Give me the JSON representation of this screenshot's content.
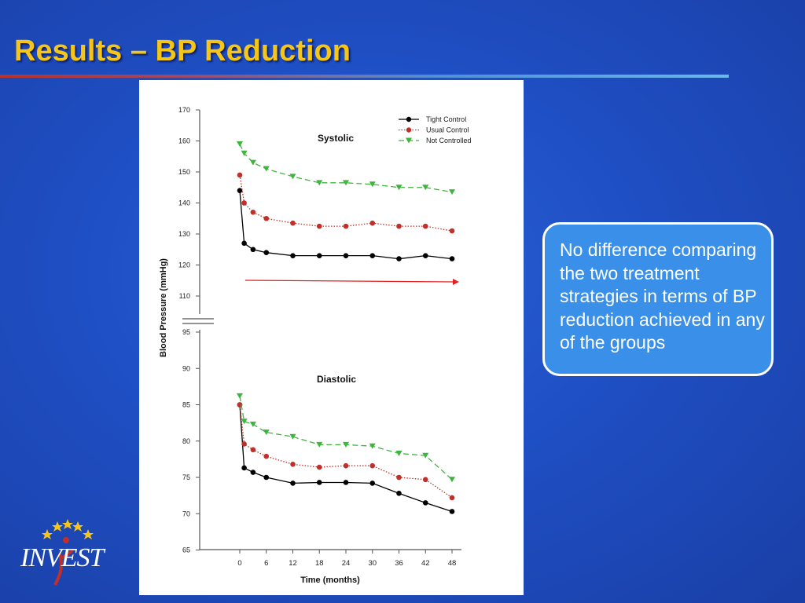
{
  "slide": {
    "title": "Results – BP Reduction",
    "callout": "No difference comparing the two treatment strategies in terms of BP reduction achieved in any of the groups",
    "logo_text": "INVEST"
  },
  "colors": {
    "title": "#f5c518",
    "callout_bg": "#3a8fe8",
    "tight_control": "#000000",
    "usual_control": "#c0302a",
    "not_controlled": "#3fb43f",
    "arrow": "#e02020"
  },
  "chart_data": [
    {
      "type": "line",
      "title": "Systolic",
      "ylabel": "Blood Pressure (mmHg)",
      "ylim": [
        105,
        170
      ],
      "yticks": [
        "110",
        "120",
        "130",
        "140",
        "150",
        "160",
        "170"
      ],
      "x": [
        0,
        1,
        3,
        6,
        12,
        18,
        24,
        30,
        36,
        42,
        48
      ],
      "legend_position": "top-right",
      "series": [
        {
          "name": "Tight Control",
          "values": [
            144,
            127,
            125,
            124,
            123,
            123,
            123,
            123,
            122,
            123,
            122
          ]
        },
        {
          "name": "Usual Control",
          "values": [
            149,
            140,
            137,
            135,
            133.5,
            132.5,
            132.5,
            133.5,
            132.5,
            132.5,
            131
          ]
        },
        {
          "name": "Not Controlled",
          "values": [
            159,
            156,
            153,
            151,
            148.5,
            146.5,
            146.5,
            146,
            145,
            145,
            143.5
          ]
        }
      ]
    },
    {
      "type": "line",
      "title": "Diastolic",
      "xlabel": "Time (months)",
      "ylim": [
        65,
        95
      ],
      "yticks": [
        "65",
        "70",
        "75",
        "80",
        "85",
        "90",
        "95"
      ],
      "x": [
        0,
        1,
        3,
        6,
        12,
        18,
        24,
        30,
        36,
        42,
        48
      ],
      "xtick_labels": [
        "0",
        "6",
        "12",
        "18",
        "24",
        "30",
        "36",
        "42",
        "48"
      ],
      "series": [
        {
          "name": "Tight Control",
          "values": [
            85,
            76.3,
            75.7,
            75,
            74.2,
            74.3,
            74.3,
            74.2,
            72.8,
            71.5,
            70.3
          ]
        },
        {
          "name": "Usual Control",
          "values": [
            85,
            79.6,
            78.8,
            77.9,
            76.8,
            76.4,
            76.6,
            76.6,
            75,
            74.7,
            72.2
          ]
        },
        {
          "name": "Not Controlled",
          "values": [
            86.2,
            82.7,
            82.3,
            81.2,
            80.6,
            79.5,
            79.5,
            79.3,
            78.3,
            78,
            74.7
          ]
        }
      ]
    }
  ]
}
